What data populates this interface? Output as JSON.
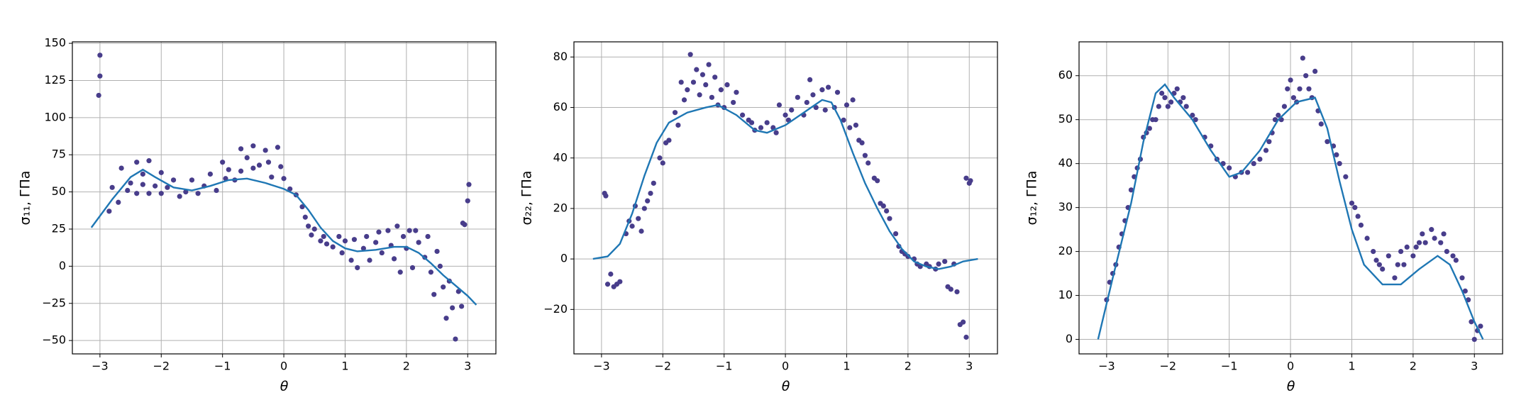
{
  "chart_data": [
    {
      "type": "scatter",
      "x_label": "θ",
      "y_label": "σ₁₁, ГПа",
      "xlim": [
        -3.45,
        3.46
      ],
      "ylim": [
        -59,
        151
      ],
      "grid": true,
      "xticks": [
        {
          "value": -3,
          "label": "−3"
        },
        {
          "value": -2,
          "label": "−2"
        },
        {
          "value": -1,
          "label": "−1"
        },
        0,
        1,
        2,
        3
      ],
      "yticks": [
        {
          "value": -50,
          "label": "−50"
        },
        {
          "value": -25,
          "label": "−25"
        },
        0,
        25,
        50,
        75,
        100,
        125,
        150
      ],
      "series": [
        {
          "type": "scatter",
          "color": "#483d8b",
          "x": [
            -3.0,
            -3.0,
            -3.02,
            -2.85,
            -2.8,
            -2.7,
            -2.65,
            -2.55,
            -2.5,
            -2.4,
            -2.4,
            -2.3,
            -2.3,
            -2.2,
            -2.2,
            -2.1,
            -2.0,
            -2.0,
            -1.9,
            -1.8,
            -1.7,
            -1.6,
            -1.5,
            -1.4,
            -1.3,
            -1.2,
            -1.1,
            -1.0,
            -0.95,
            -0.9,
            -0.8,
            -0.7,
            -0.7,
            -0.6,
            -0.5,
            -0.5,
            -0.4,
            -0.3,
            -0.25,
            -0.2,
            -0.1,
            -0.05,
            0,
            0.1,
            0.2,
            0.3,
            0.35,
            0.4,
            0.45,
            0.5,
            0.6,
            0.65,
            0.7,
            0.8,
            0.9,
            0.95,
            1.0,
            1.1,
            1.15,
            1.2,
            1.3,
            1.35,
            1.4,
            1.5,
            1.55,
            1.6,
            1.7,
            1.75,
            1.8,
            1.85,
            1.9,
            1.95,
            2.0,
            2.05,
            2.1,
            2.15,
            2.2,
            2.3,
            2.35,
            2.4,
            2.45,
            2.5,
            2.55,
            2.6,
            2.65,
            2.7,
            2.75,
            2.8,
            2.85,
            2.9,
            2.92,
            2.95,
            3.0,
            3.02
          ],
          "values": [
            142,
            128,
            115,
            37,
            53,
            43,
            66,
            51,
            56,
            70,
            49,
            55,
            62,
            71,
            49,
            54,
            63,
            49,
            53,
            58,
            47,
            50,
            58,
            49,
            54,
            62,
            51,
            70,
            59,
            65,
            58,
            79,
            64,
            73,
            81,
            66,
            68,
            78,
            70,
            60,
            80,
            67,
            59,
            52,
            48,
            40,
            33,
            27,
            21,
            25,
            17,
            20,
            15,
            13,
            20,
            9,
            17,
            4,
            18,
            -1,
            12,
            20,
            4,
            16,
            23,
            9,
            24,
            14,
            5,
            27,
            -4,
            20,
            12,
            24,
            -1,
            24,
            16,
            6,
            20,
            -4,
            -19,
            10,
            0,
            -14,
            -35,
            -10,
            -28,
            -49,
            -17,
            -27,
            29,
            28,
            44,
            55
          ]
        },
        {
          "type": "line",
          "color": "#1f77b4",
          "x": [
            -3.14,
            -2.8,
            -2.5,
            -2.3,
            -2.1,
            -1.8,
            -1.5,
            -1.2,
            -0.9,
            -0.6,
            -0.3,
            0,
            0.2,
            0.4,
            0.6,
            0.8,
            1.0,
            1.2,
            1.5,
            1.8,
            2.0,
            2.2,
            2.4,
            2.6,
            2.8,
            3.0,
            3.14
          ],
          "values": [
            26,
            45,
            60,
            65,
            60,
            53,
            51,
            54,
            58,
            59,
            56,
            52,
            48,
            38,
            26,
            17,
            12,
            10,
            11,
            13,
            13,
            9,
            2,
            -6,
            -13,
            -20,
            -26
          ]
        }
      ]
    },
    {
      "type": "scatter",
      "x_label": "θ",
      "y_label": "σ₂₂, ГПа",
      "xlim": [
        -3.45,
        3.46
      ],
      "ylim": [
        -37.6,
        86
      ],
      "grid": true,
      "xticks": [
        {
          "value": -3,
          "label": "−3"
        },
        {
          "value": -2,
          "label": "−2"
        },
        {
          "value": -1,
          "label": "−1"
        },
        0,
        1,
        2,
        3
      ],
      "yticks": [
        {
          "value": -20,
          "label": "−20"
        },
        0,
        20,
        40,
        60,
        80
      ],
      "series": [
        {
          "type": "scatter",
          "color": "#483d8b",
          "x": [
            -2.95,
            -2.93,
            -2.9,
            -2.85,
            -2.8,
            -2.75,
            -2.7,
            -2.6,
            -2.55,
            -2.5,
            -2.45,
            -2.4,
            -2.35,
            -2.3,
            -2.25,
            -2.2,
            -2.15,
            -2.05,
            -2.0,
            -1.95,
            -1.9,
            -1.8,
            -1.75,
            -1.7,
            -1.65,
            -1.6,
            -1.55,
            -1.5,
            -1.45,
            -1.4,
            -1.35,
            -1.3,
            -1.25,
            -1.2,
            -1.15,
            -1.1,
            -1.05,
            -1.0,
            -0.95,
            -0.85,
            -0.8,
            -0.7,
            -0.6,
            -0.55,
            -0.5,
            -0.4,
            -0.3,
            -0.2,
            -0.15,
            -0.1,
            0,
            0.05,
            0.1,
            0.2,
            0.3,
            0.35,
            0.4,
            0.45,
            0.5,
            0.6,
            0.65,
            0.7,
            0.8,
            0.85,
            0.95,
            1.0,
            1.05,
            1.1,
            1.15,
            1.2,
            1.25,
            1.3,
            1.35,
            1.45,
            1.5,
            1.55,
            1.6,
            1.65,
            1.7,
            1.8,
            1.85,
            1.9,
            1.95,
            2.0,
            2.1,
            2.15,
            2.2,
            2.3,
            2.35,
            2.45,
            2.5,
            2.6,
            2.65,
            2.7,
            2.75,
            2.8,
            2.85,
            2.9,
            2.95,
            2.95,
            3.0,
            3.02
          ],
          "values": [
            26,
            25,
            -10,
            -6,
            -11,
            -10,
            -9,
            10,
            15,
            13,
            21,
            16,
            11,
            20,
            23,
            26,
            30,
            40,
            38,
            46,
            47,
            58,
            53,
            70,
            63,
            67,
            81,
            70,
            75,
            65,
            73,
            69,
            77,
            64,
            72,
            61,
            67,
            60,
            69,
            62,
            66,
            57,
            55,
            54,
            51,
            52,
            54,
            52,
            50,
            61,
            57,
            55,
            59,
            64,
            57,
            62,
            71,
            65,
            60,
            67,
            59,
            68,
            60,
            66,
            55,
            61,
            52,
            63,
            53,
            47,
            46,
            41,
            38,
            32,
            31,
            22,
            21,
            19,
            16,
            10,
            5,
            3,
            2,
            1,
            0,
            -2,
            -3,
            -2,
            -3,
            -4,
            -2,
            -1,
            -11,
            -12,
            -2,
            -13,
            -26,
            -25,
            -31,
            32,
            30,
            31
          ]
        },
        {
          "type": "line",
          "color": "#1f77b4",
          "x": [
            -3.14,
            -2.9,
            -2.7,
            -2.5,
            -2.3,
            -2.1,
            -1.9,
            -1.6,
            -1.3,
            -1.1,
            -0.8,
            -0.5,
            -0.3,
            0,
            0.3,
            0.6,
            0.75,
            0.9,
            1.1,
            1.3,
            1.5,
            1.7,
            1.9,
            2.1,
            2.3,
            2.5,
            2.7,
            2.9,
            3.14
          ],
          "values": [
            0,
            1,
            6,
            18,
            33,
            46,
            54,
            58,
            60,
            61,
            57,
            51,
            50,
            53,
            58,
            63,
            62,
            55,
            42,
            30,
            20,
            11,
            4,
            -1,
            -3,
            -4,
            -3,
            -1,
            0
          ]
        }
      ]
    },
    {
      "type": "scatter",
      "x_label": "θ",
      "y_label": "σ₁₂, ГПа",
      "xlim": [
        -3.45,
        3.46
      ],
      "ylim": [
        -3.3,
        67.7
      ],
      "grid": true,
      "xticks": [
        {
          "value": -3,
          "label": "−3"
        },
        {
          "value": -2,
          "label": "−2"
        },
        {
          "value": -1,
          "label": "−1"
        },
        0,
        1,
        2,
        3
      ],
      "yticks": [
        0,
        10,
        20,
        30,
        40,
        50,
        60
      ],
      "series": [
        {
          "type": "scatter",
          "color": "#483d8b",
          "x": [
            -3.0,
            -2.95,
            -2.9,
            -2.85,
            -2.8,
            -2.75,
            -2.7,
            -2.65,
            -2.6,
            -2.55,
            -2.5,
            -2.45,
            -2.4,
            -2.35,
            -2.3,
            -2.25,
            -2.2,
            -2.15,
            -2.1,
            -2.05,
            -2.0,
            -1.95,
            -1.9,
            -1.85,
            -1.8,
            -1.75,
            -1.7,
            -1.6,
            -1.55,
            -1.4,
            -1.3,
            -1.2,
            -1.1,
            -1.0,
            -0.9,
            -0.8,
            -0.7,
            -0.6,
            -0.5,
            -0.4,
            -0.35,
            -0.3,
            -0.25,
            -0.2,
            -0.15,
            -0.1,
            -0.05,
            0.0,
            0.05,
            0.1,
            0.15,
            0.2,
            0.25,
            0.3,
            0.35,
            0.4,
            0.45,
            0.5,
            0.6,
            0.7,
            0.75,
            0.8,
            0.9,
            1.0,
            1.05,
            1.1,
            1.15,
            1.25,
            1.35,
            1.4,
            1.45,
            1.5,
            1.6,
            1.7,
            1.75,
            1.8,
            1.85,
            1.9,
            2.0,
            2.05,
            2.1,
            2.15,
            2.2,
            2.3,
            2.35,
            2.45,
            2.5,
            2.55,
            2.65,
            2.7,
            2.8,
            2.85,
            2.9,
            2.95,
            3.0,
            3.05,
            3.1
          ],
          "values": [
            9,
            13,
            15,
            17,
            21,
            24,
            27,
            30,
            34,
            37,
            39,
            41,
            46,
            47,
            48,
            50,
            50,
            53,
            56,
            55,
            53,
            54,
            56,
            57,
            54,
            55,
            53,
            51,
            50,
            46,
            44,
            41,
            40,
            39,
            37,
            38,
            38,
            40,
            41,
            43,
            45,
            47,
            50,
            51,
            50,
            53,
            57,
            59,
            55,
            54,
            57,
            64,
            60,
            57,
            55,
            61,
            52,
            49,
            45,
            44,
            42,
            40,
            37,
            31,
            30,
            28,
            26,
            23,
            20,
            18,
            17,
            16,
            19,
            14,
            17,
            20,
            17,
            21,
            19,
            21,
            22,
            24,
            22,
            25,
            23,
            22,
            24,
            20,
            19,
            18,
            14,
            11,
            9,
            4,
            0,
            2,
            3
          ]
        },
        {
          "type": "line",
          "color": "#1f77b4",
          "x": [
            -3.14,
            -2.9,
            -2.6,
            -2.4,
            -2.2,
            -2.05,
            -1.9,
            -1.6,
            -1.3,
            -1.0,
            -0.8,
            -0.5,
            -0.2,
            0.1,
            0.4,
            0.6,
            0.8,
            1.0,
            1.2,
            1.5,
            1.8,
            2.1,
            2.4,
            2.6,
            2.8,
            3.0,
            3.14
          ],
          "values": [
            0,
            14,
            31,
            45,
            56,
            58,
            55,
            50,
            43,
            37,
            38,
            43,
            50,
            54,
            55,
            48,
            36,
            25,
            17,
            12.5,
            12.5,
            16,
            19,
            17,
            11,
            4,
            0
          ]
        }
      ]
    }
  ]
}
